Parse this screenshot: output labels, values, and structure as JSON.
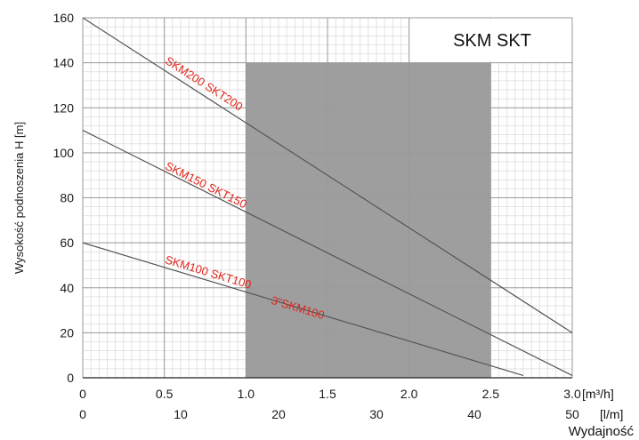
{
  "chart_data": {
    "type": "line",
    "title": "SKM SKT",
    "ylabel": "Wysokość podnoszenia H [m]",
    "xlabel": "Wydajność",
    "x_unit_top": "[m³/h]",
    "x_unit_bottom": "[l/m]",
    "xlim": [
      0,
      3.0
    ],
    "ylim": [
      0,
      160
    ],
    "x_ticks_top": [
      "0",
      "0.5",
      "1.0",
      "1.5",
      "2.0",
      "2.5",
      "3.0"
    ],
    "x_ticks_bottom": [
      "0",
      "10",
      "20",
      "30",
      "40",
      "50"
    ],
    "y_ticks": [
      "0",
      "20",
      "40",
      "60",
      "80",
      "100",
      "120",
      "140",
      "160"
    ],
    "grid": true,
    "shaded_region": {
      "x": [
        1.0,
        2.5
      ],
      "y": [
        0,
        140
      ]
    },
    "series": [
      {
        "name": "SKM200 SKT200",
        "x": [
          0,
          3.0
        ],
        "y": [
          160,
          20
        ],
        "color": "#555555"
      },
      {
        "name": "SKM150 SKT150",
        "x": [
          0,
          3.0
        ],
        "y": [
          110,
          1
        ],
        "color": "#555555"
      },
      {
        "name": "SKM100 SKT100",
        "x": [
          0,
          2.7
        ],
        "y": [
          60,
          1
        ],
        "color": "#555555"
      }
    ],
    "annotations": [
      {
        "text": "SKM200 SKT200",
        "x": 0.5,
        "y": 140
      },
      {
        "text": "SKM150 SKT150",
        "x": 0.5,
        "y": 93
      },
      {
        "text": "SKM100 SKT100",
        "x": 0.5,
        "y": 51
      },
      {
        "text": "3\"SKM100",
        "x": 1.15,
        "y": 33
      }
    ],
    "colors": {
      "label": "#e0251b",
      "shade": "#9e9e9e",
      "grid_major": "#9a9a9a",
      "grid_minor": "#dcdcdc",
      "curve": "#555555"
    }
  }
}
